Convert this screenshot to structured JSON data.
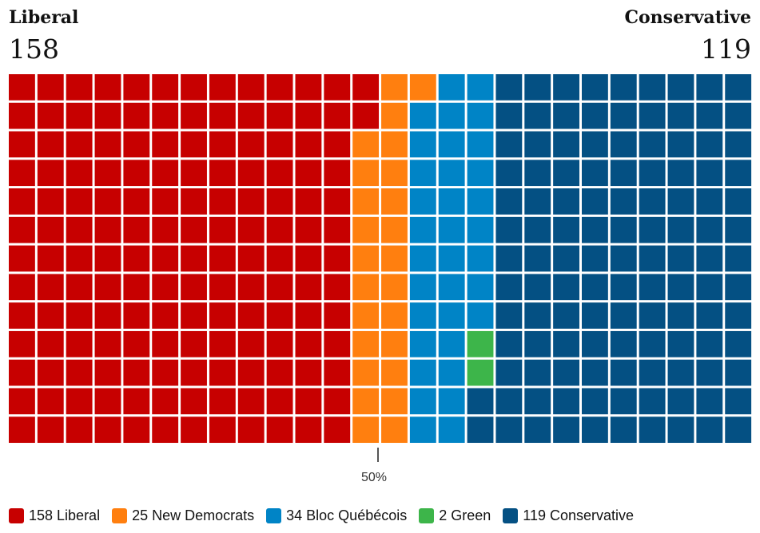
{
  "header": {
    "left": {
      "name": "Liberal",
      "count": "158"
    },
    "right": {
      "name": "Conservative",
      "count": "119"
    }
  },
  "majority_marker": "50%",
  "colors": {
    "liberal": "#c70000",
    "ndp": "#ff7f0f",
    "bloc": "#0084c6",
    "green": "#3db54a",
    "conservative": "#045083"
  },
  "legend": [
    {
      "label": "158 Liberal",
      "color": "#c70000"
    },
    {
      "label": "25 New Democrats",
      "color": "#ff7f0f"
    },
    {
      "label": "34 Bloc Québécois",
      "color": "#0084c6"
    },
    {
      "label": "2 Green",
      "color": "#3db54a"
    },
    {
      "label": "119 Conservative",
      "color": "#045083"
    }
  ],
  "chart_data": {
    "type": "waffle",
    "rows": 13,
    "columns": 26,
    "series": [
      {
        "name": "Liberal",
        "value": 158
      },
      {
        "name": "New Democrats",
        "value": 25
      },
      {
        "name": "Bloc Québécois",
        "value": 34
      },
      {
        "name": "Green",
        "value": 2
      },
      {
        "name": "Conservative",
        "value": 119
      }
    ],
    "total": 338
  }
}
